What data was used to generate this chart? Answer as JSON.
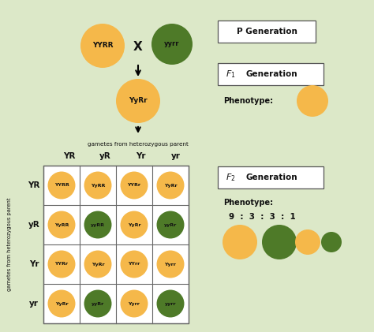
{
  "bg_color": "#dce8c8",
  "orange_color": "#f5b84a",
  "green_color": "#4e7a28",
  "text_color": "#1a1a1a",
  "p_orange_label": "YYRR",
  "p_green_label": "yyrr",
  "f1_label": "YyRr",
  "gametes_label": "gametes from heterozygous parent",
  "col_gametes": [
    "YR",
    "yR",
    "Yr",
    "yr"
  ],
  "row_gametes": [
    "YR",
    "yR",
    "Yr",
    "yr"
  ],
  "row_label": "gametes from heterozygous parent",
  "grid_labels": [
    [
      "YYRR",
      "YyRR",
      "YYRr",
      "YyRr"
    ],
    [
      "YyRR",
      "yyRR",
      "YyRr",
      "yyRr"
    ],
    [
      "YYRr",
      "YyRr",
      "YYrr",
      "Yyrr"
    ],
    [
      "YyRr",
      "yyRr",
      "Yyrr",
      "yyrr"
    ]
  ],
  "grid_colors": [
    [
      "orange",
      "orange",
      "orange",
      "orange"
    ],
    [
      "orange",
      "green",
      "orange",
      "green"
    ],
    [
      "orange",
      "orange",
      "orange",
      "orange"
    ],
    [
      "orange",
      "green",
      "orange",
      "green"
    ]
  ],
  "p_gen_label": "P Generation",
  "f1_gen_label": "Generation",
  "f2_gen_label": "Generation",
  "phenotype_label": "Phenotype:",
  "ratio_label": "9  :  3  :  3  :  1"
}
